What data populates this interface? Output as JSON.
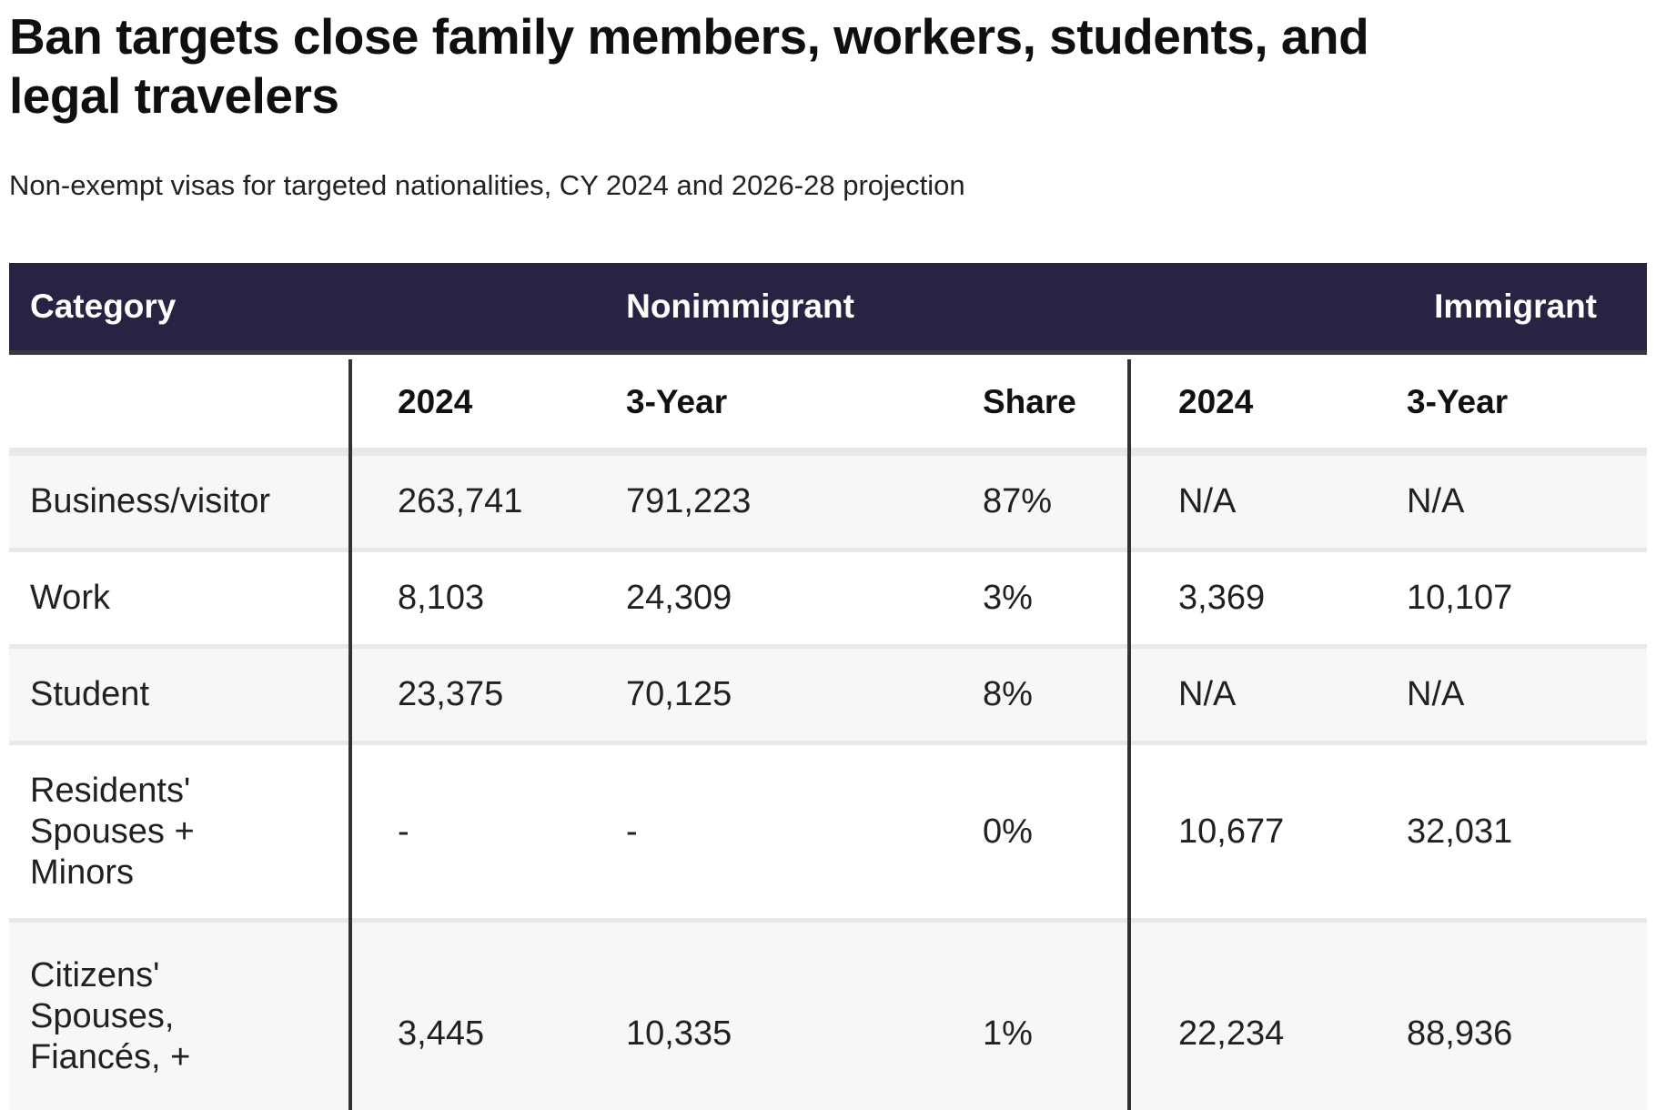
{
  "title": "Ban targets close family members, workers, students, and\nlegal travelers",
  "subtitle": "Non-exempt visas for targeted nationalities, CY 2024 and 2026-28 projection",
  "table": {
    "group_headers": {
      "category": "Category",
      "nonimmigrant": "Nonimmigrant",
      "immigrant": "Immigrant"
    },
    "column_headers": {
      "nonimm_2024": "2024",
      "nonimm_3year": "3-Year",
      "share": "Share",
      "imm_2024": "2024",
      "imm_3year": "3-Year"
    },
    "rows": [
      {
        "category": "Business/visitor",
        "nonimm_2024": "263,741",
        "nonimm_3year": "791,223",
        "share": "87%",
        "imm_2024": "N/A",
        "imm_3year": "N/A"
      },
      {
        "category": "Work",
        "nonimm_2024": "8,103",
        "nonimm_3year": "24,309",
        "share": "3%",
        "imm_2024": "3,369",
        "imm_3year": "10,107"
      },
      {
        "category": "Student",
        "nonimm_2024": "23,375",
        "nonimm_3year": "70,125",
        "share": "8%",
        "imm_2024": "N/A",
        "imm_3year": "N/A"
      },
      {
        "category": "Residents'\nSpouses +\nMinors",
        "nonimm_2024": "-",
        "nonimm_3year": "-",
        "share": "0%",
        "imm_2024": "10,677",
        "imm_3year": "32,031"
      },
      {
        "category": "Citizens'\nSpouses,\nFiancés, +",
        "nonimm_2024": "3,445",
        "nonimm_3year": "10,335",
        "share": "1%",
        "imm_2024": "22,234",
        "imm_3year": "88,936"
      }
    ],
    "colors": {
      "header_bg": "#282243",
      "header_text": "#ffffff",
      "header_border": "#3a3a3a",
      "row_alt_bg": "#f7f7f7",
      "row_border": "#e9e9e9",
      "section_divider": "#333333",
      "body_text": "#212121"
    }
  },
  "chart_data": {
    "type": "table",
    "title": "Ban targets close family members, workers, students, and legal travelers",
    "subtitle": "Non-exempt visas for targeted nationalities, CY 2024 and 2026-28 projection",
    "column_groups": [
      "Category",
      "Nonimmigrant",
      "Immigrant"
    ],
    "columns": [
      "Category",
      "Nonimmigrant 2024",
      "Nonimmigrant 3-Year",
      "Nonimmigrant Share",
      "Immigrant 2024",
      "Immigrant 3-Year"
    ],
    "rows": [
      [
        "Business/visitor",
        "263,741",
        "791,223",
        "87%",
        "N/A",
        "N/A"
      ],
      [
        "Work",
        "8,103",
        "24,309",
        "3%",
        "3,369",
        "10,107"
      ],
      [
        "Student",
        "23,375",
        "70,125",
        "8%",
        "N/A",
        "N/A"
      ],
      [
        "Residents' Spouses + Minors",
        "-",
        "-",
        "0%",
        "10,677",
        "32,031"
      ],
      [
        "Citizens' Spouses, Fiancés, +",
        "3,445",
        "10,335",
        "1%",
        "22,234",
        "88,936"
      ]
    ]
  }
}
